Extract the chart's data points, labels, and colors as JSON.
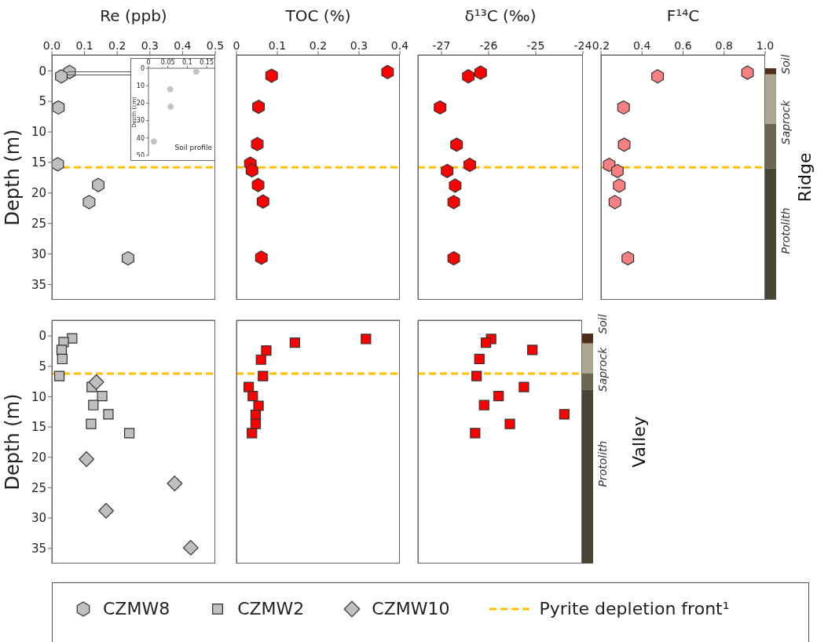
{
  "chart_data": [
    {
      "type": "scatter",
      "title": "Re (ppb)",
      "ylabel": "Depth (m)",
      "xlim": [
        0,
        0.5
      ],
      "xticks": [
        {
          "value": 0,
          "label": "0.0"
        },
        0.1,
        0.2,
        0.3,
        0.4,
        0.5
      ],
      "ylim": [
        37.5,
        -2.6
      ],
      "yticks": [
        0,
        5,
        10,
        15,
        20,
        25,
        30,
        35
      ],
      "legend": "bottom",
      "ref_lines": [
        {
          "axis": "y",
          "value": 15.8,
          "label": "Pyrite depletion front¹",
          "color": "#ffc000",
          "line_style": "dashed"
        }
      ],
      "series": [
        {
          "name": "CZMW8",
          "color": "#bfbfbf",
          "x": [
            0.054,
            0.029,
            0.02,
            0.018,
            0.142,
            0.114,
            0.233
          ],
          "values": [
            0.2,
            0.9,
            6.0,
            15.3,
            18.7,
            21.5,
            30.7
          ]
        }
      ]
    },
    {
      "type": "scatter",
      "ylabel": "Depth (cm)",
      "xlim": [
        0,
        0.17
      ],
      "xticks": [
        0,
        0.05,
        0.1,
        0.15
      ],
      "ylim": [
        50,
        0
      ],
      "yticks": [
        0,
        10,
        20,
        30,
        40,
        50
      ],
      "annotations": [
        "Soil profile"
      ],
      "series": [
        {
          "color": "#c4c4c4",
          "x": [
            0.123,
            0.056,
            0.057,
            0.014
          ],
          "values": [
            2,
            12,
            22,
            42
          ]
        }
      ]
    },
    {
      "type": "scatter",
      "title": "TOC (%)",
      "xlim": [
        0,
        0.4
      ],
      "xticks": [
        0,
        0.1,
        0.2,
        0.3,
        0.4
      ],
      "ylim": [
        37.5,
        -2.6
      ],
      "yticks": [
        0,
        5,
        10,
        15,
        20,
        25,
        30,
        35
      ],
      "tick_labels": "x",
      "ref_lines": [
        {
          "axis": "y",
          "value": 15.8,
          "color": "#ffc000",
          "line_style": "dashed"
        }
      ],
      "series": [
        {
          "color": "#ff0000",
          "x": [
            0.37,
            0.086,
            0.054,
            0.051,
            0.034,
            0.038,
            0.053,
            0.065,
            0.061
          ],
          "values": [
            0.2,
            0.8,
            5.9,
            12.0,
            15.2,
            16.3,
            18.7,
            21.4,
            30.6
          ]
        }
      ]
    },
    {
      "type": "scatter",
      "title": "δ¹³C (‰)",
      "xlim": [
        -27.5,
        -24
      ],
      "xticks": [
        -27,
        -26,
        -25,
        -24
      ],
      "ylim": [
        37.5,
        -2.6
      ],
      "yticks": [
        0,
        5,
        10,
        15,
        20,
        25,
        30,
        35
      ],
      "tick_labels": "x",
      "ref_lines": [
        {
          "axis": "y",
          "value": 15.8,
          "color": "#ffc000",
          "line_style": "dashed"
        }
      ],
      "series": [
        {
          "color": "#ff0000",
          "x": [
            -26.17,
            -26.43,
            -27.03,
            -26.68,
            -26.4,
            -26.88,
            -26.71,
            -26.74,
            -26.74
          ],
          "values": [
            0.3,
            0.9,
            6.0,
            12.1,
            15.4,
            16.4,
            18.8,
            21.5,
            30.7
          ]
        }
      ]
    },
    {
      "type": "scatter",
      "title": "F¹⁴C",
      "xlim": [
        0.2,
        1.0
      ],
      "xticks": [
        0.2,
        0.4,
        0.6,
        0.8,
        {
          "value": 1.0,
          "label": "1.0"
        }
      ],
      "ylim": [
        37.5,
        -2.6
      ],
      "yticks": [
        0,
        5,
        10,
        15,
        20,
        25,
        30,
        35
      ],
      "tick_labels": "x",
      "ref_lines": [
        {
          "axis": "y",
          "value": 15.8,
          "color": "#ffc000",
          "line_style": "dashed"
        }
      ],
      "series": [
        {
          "color": "#f88080",
          "x": [
            0.914,
            0.476,
            0.31,
            0.313,
            0.24,
            0.28,
            0.289,
            0.268,
            0.331
          ],
          "values": [
            0.3,
            0.9,
            6.0,
            12.1,
            15.4,
            16.4,
            18.8,
            21.5,
            30.7
          ]
        }
      ]
    },
    {
      "type": "other",
      "y2label": "Ridge",
      "annotations": [
        "Soil",
        "Saprock",
        "Protolith"
      ]
    },
    {
      "type": "scatter",
      "ylabel": "Depth (m)",
      "xlim": [
        0,
        0.5
      ],
      "xticks": [
        0,
        0.1,
        0.2,
        0.3,
        0.4,
        0.5
      ],
      "ylim": [
        37.5,
        -2.6
      ],
      "yticks": [
        0,
        5,
        10,
        15,
        20,
        25,
        30,
        35
      ],
      "tick_labels": "y",
      "legend": "bottom",
      "ref_lines": [
        {
          "axis": "y",
          "value": 6.2,
          "color": "#ffc000",
          "line_style": "dashed"
        }
      ],
      "series": [
        {
          "name": "CZMW2",
          "color": "#bfbfbf",
          "marker": "square",
          "x": [
            0.062,
            0.036,
            0.03,
            0.032,
            0.023,
            0.122,
            0.154,
            0.127,
            0.173,
            0.12,
            0.237
          ],
          "values": [
            0.4,
            1.0,
            2.3,
            3.8,
            6.6,
            8.4,
            9.9,
            11.4,
            12.9,
            14.5,
            16.0
          ]
        },
        {
          "name": "CZMW10",
          "color": "#bfbfbf",
          "marker": "diamond",
          "x": [
            0.136,
            0.106,
            0.376,
            0.166,
            0.425
          ],
          "values": [
            7.6,
            20.3,
            24.3,
            28.8,
            34.9
          ]
        }
      ]
    },
    {
      "type": "scatter",
      "xlim": [
        0,
        0.4
      ],
      "xticks": [
        0,
        0.1,
        0.2,
        0.3,
        0.4
      ],
      "ylim": [
        37.5,
        -2.6
      ],
      "yticks": [
        0,
        5,
        10,
        15,
        20,
        25,
        30,
        35
      ],
      "tick_labels": false,
      "ref_lines": [
        {
          "axis": "y",
          "value": 6.2,
          "color": "#ffc000",
          "line_style": "dashed"
        }
      ],
      "series": [
        {
          "color": "#ff0000",
          "marker": "square",
          "x": [
            0.317,
            0.143,
            0.073,
            0.06,
            0.065,
            0.03,
            0.04,
            0.054,
            0.047,
            0.047,
            0.038
          ],
          "values": [
            0.5,
            1.1,
            2.4,
            3.9,
            6.6,
            8.4,
            9.9,
            11.5,
            13.0,
            14.5,
            16.0
          ]
        }
      ]
    },
    {
      "type": "scatter",
      "xlim": [
        -27.5,
        -24
      ],
      "xticks": [
        -27,
        -26,
        -25,
        -24
      ],
      "ylim": [
        37.5,
        -2.6
      ],
      "yticks": [
        0,
        5,
        10,
        15,
        20,
        25,
        30,
        35
      ],
      "tick_labels": false,
      "ref_lines": [
        {
          "axis": "y",
          "value": 6.2,
          "color": "#ffc000",
          "line_style": "dashed"
        }
      ],
      "series": [
        {
          "color": "#ff0000",
          "marker": "square",
          "x": [
            -25.94,
            -26.05,
            -25.06,
            -26.19,
            -26.25,
            -25.24,
            -25.78,
            -26.09,
            -24.38,
            -25.54,
            -26.28
          ],
          "values": [
            0.5,
            1.1,
            2.3,
            3.8,
            6.6,
            8.4,
            9.9,
            11.4,
            12.9,
            14.5,
            16.0
          ]
        }
      ]
    },
    {
      "type": "other",
      "y2label": "Valley",
      "annotations": [
        "Soil",
        "Saprock",
        "Protolith"
      ]
    }
  ]
}
